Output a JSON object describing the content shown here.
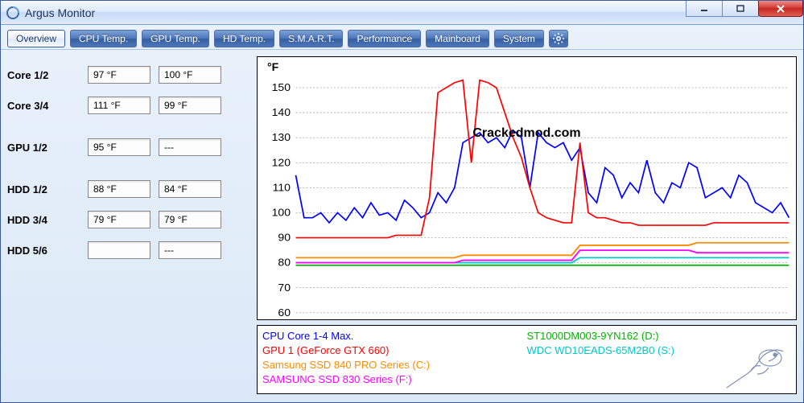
{
  "window": {
    "title": "Argus Monitor"
  },
  "tabs": [
    {
      "label": "Overview",
      "active": true
    },
    {
      "label": "CPU Temp."
    },
    {
      "label": "GPU Temp."
    },
    {
      "label": "HD Temp."
    },
    {
      "label": "S.M.A.R.T."
    },
    {
      "label": "Performance"
    },
    {
      "label": "Mainboard"
    },
    {
      "label": "System"
    }
  ],
  "readings": [
    {
      "label": "Core 1/2",
      "a": "97 °F",
      "b": "100 °F"
    },
    {
      "label": "Core 3/4",
      "a": "111 °F",
      "b": "99 °F"
    },
    {
      "label": "GPU 1/2",
      "a": "95 °F",
      "b": "---"
    },
    {
      "label": "HDD 1/2",
      "a": "88 °F",
      "b": "84 °F"
    },
    {
      "label": "HDD 3/4",
      "a": "79 °F",
      "b": "79 °F"
    },
    {
      "label": "HDD 5/6",
      "a": "",
      "b": "---"
    }
  ],
  "chart": {
    "ylabel": "°F",
    "ylim": [
      60,
      155
    ],
    "yticks": [
      60,
      70,
      80,
      90,
      100,
      110,
      120,
      130,
      140,
      150
    ],
    "grid_color": "#808080",
    "background_color": "#ffffff",
    "series": [
      {
        "name": "cpu",
        "color": "#0000ff",
        "points": [
          115,
          98,
          98,
          100,
          96,
          100,
          97,
          102,
          98,
          104,
          99,
          100,
          97,
          105,
          102,
          98,
          100,
          108,
          104,
          110,
          128,
          130,
          132,
          128,
          130,
          126,
          133,
          130,
          110,
          132,
          128,
          126,
          128,
          121,
          126,
          108,
          104,
          118,
          115,
          106,
          112,
          108,
          121,
          108,
          104,
          112,
          110,
          120,
          118,
          106,
          108,
          110,
          106,
          115,
          112,
          104,
          102,
          100,
          104,
          98
        ]
      },
      {
        "name": "gpu",
        "color": "#ff0000",
        "points": [
          90,
          90,
          90,
          90,
          90,
          90,
          90,
          90,
          90,
          90,
          90,
          90,
          91,
          91,
          91,
          91,
          106,
          148,
          150,
          152,
          153,
          120,
          153,
          152,
          150,
          140,
          130,
          122,
          110,
          100,
          98,
          97,
          96,
          96,
          128,
          100,
          98,
          98,
          97,
          96,
          96,
          95,
          95,
          95,
          95,
          95,
          95,
          95,
          95,
          95,
          96,
          96,
          96,
          96,
          96,
          96,
          96,
          96,
          96,
          96
        ]
      },
      {
        "name": "hdd-d",
        "color": "#00b400",
        "points": [
          79,
          79,
          79,
          79,
          79,
          79,
          79,
          79,
          79,
          79,
          79,
          79,
          79,
          79,
          79,
          79,
          79,
          79,
          79,
          79,
          79,
          79,
          79,
          79,
          79,
          79,
          79,
          79,
          79,
          79,
          79,
          79,
          79,
          79,
          79,
          79,
          79,
          79,
          79,
          79,
          79,
          79,
          79,
          79,
          79,
          79,
          79,
          79,
          79,
          79,
          79,
          79,
          79,
          79,
          79,
          79,
          79,
          79,
          79,
          79
        ]
      },
      {
        "name": "hdd-s",
        "color": "#00c8c8",
        "points": [
          80,
          80,
          80,
          80,
          80,
          80,
          80,
          80,
          80,
          80,
          80,
          80,
          80,
          80,
          80,
          80,
          80,
          80,
          80,
          80,
          80,
          80,
          80,
          80,
          80,
          80,
          80,
          80,
          80,
          80,
          80,
          80,
          80,
          80,
          82,
          82,
          82,
          82,
          82,
          82,
          82,
          82,
          82,
          82,
          82,
          82,
          82,
          82,
          82,
          82,
          82,
          82,
          82,
          82,
          82,
          82,
          82,
          82,
          82,
          82
        ]
      },
      {
        "name": "ssd-c",
        "color": "#ff8c00",
        "points": [
          82,
          82,
          82,
          82,
          82,
          82,
          82,
          82,
          82,
          82,
          82,
          82,
          82,
          82,
          82,
          82,
          82,
          82,
          82,
          82,
          83,
          83,
          83,
          83,
          83,
          83,
          83,
          83,
          83,
          83,
          83,
          83,
          83,
          83,
          87,
          87,
          87,
          87,
          87,
          87,
          87,
          87,
          87,
          87,
          87,
          87,
          87,
          87,
          88,
          88,
          88,
          88,
          88,
          88,
          88,
          88,
          88,
          88,
          88,
          88
        ]
      },
      {
        "name": "ssd-f",
        "color": "#ff00ff",
        "points": [
          80,
          80,
          80,
          80,
          80,
          80,
          80,
          80,
          80,
          80,
          80,
          80,
          80,
          80,
          80,
          80,
          80,
          80,
          80,
          80,
          81,
          81,
          81,
          81,
          81,
          81,
          81,
          81,
          81,
          81,
          81,
          81,
          81,
          81,
          85,
          85,
          85,
          85,
          85,
          85,
          85,
          85,
          85,
          85,
          85,
          85,
          85,
          85,
          84,
          84,
          84,
          84,
          84,
          84,
          84,
          84,
          84,
          84,
          84,
          84
        ]
      }
    ],
    "watermark": "Crackedmod.com"
  },
  "legend": [
    {
      "label": "CPU Core 1-4 Max.",
      "color": "#0000ff"
    },
    {
      "label": "ST1000DM003-9YN162 (D:)",
      "color": "#00b400"
    },
    {
      "label": "GPU 1 (GeForce GTX 660)",
      "color": "#ff0000"
    },
    {
      "label": "WDC WD10EADS-65M2B0 (S:)",
      "color": "#00c8c8"
    },
    {
      "label": "Samsung SSD 840 PRO Series (C:)",
      "color": "#ff8c00"
    },
    {
      "label": "",
      "color": ""
    },
    {
      "label": "SAMSUNG SSD 830 Series (F:)",
      "color": "#ff00ff"
    }
  ]
}
